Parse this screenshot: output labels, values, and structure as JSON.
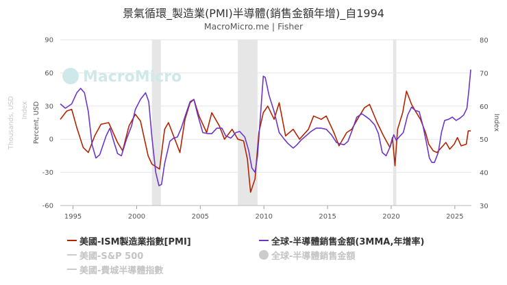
{
  "title": "景氣循環_製造業(PMI)半導體(銷售金額年增)_自1994",
  "subtitle": "MacroMicro.me | Fisher",
  "watermark": "MacroMicro",
  "colors": {
    "pmi": "#b22300",
    "semi": "#6a36c7",
    "inactive": "#cccccc",
    "grid": "#e6e6e6",
    "band": "#e6e6e6"
  },
  "legend": [
    {
      "label": "美國-ISM製造業指數[PMI]",
      "color": "#b22300",
      "marker": "line",
      "active": true
    },
    {
      "label": "全球-半導體銷售金額(3MMA,年增率)",
      "color": "#6a36c7",
      "marker": "line",
      "active": true
    },
    {
      "label": "美國-S&P 500",
      "color": "#cccccc",
      "marker": "line",
      "active": false
    },
    {
      "label": "全球-半導體銷售金額",
      "color": "#cccccc",
      "marker": "dot",
      "active": false
    },
    {
      "label": "美國-費城半導體指數",
      "color": "#cccccc",
      "marker": "line",
      "active": false
    }
  ],
  "chart_data": {
    "type": "line",
    "title": "景氣循環_製造業(PMI)半導體(銷售金額年增)_自1994",
    "x_range": [
      1994.0,
      2026.3
    ],
    "x_ticks": [
      1995,
      2000,
      2005,
      2010,
      2015,
      2020,
      2025
    ],
    "left_axis": {
      "title": "Percent, USD",
      "range": [
        -60,
        90
      ],
      "ticks": [
        -60,
        -30,
        0,
        30,
        60,
        90
      ]
    },
    "left_faint_axis": {
      "title": "Thousands, USD",
      "subtitle": "Index"
    },
    "right_axis": {
      "title": "Index",
      "range": [
        30,
        80
      ],
      "ticks": [
        30,
        40,
        50,
        60,
        70,
        80
      ]
    },
    "recessions": [
      [
        2001.2,
        2001.9
      ],
      [
        2007.95,
        2009.5
      ],
      [
        2020.15,
        2020.4
      ]
    ],
    "series": [
      {
        "name": "美國-ISM製造業指數[PMI]",
        "axis": "right",
        "color": "#b22300",
        "points": [
          [
            1994.0,
            56.0
          ],
          [
            1994.5,
            58.5
          ],
          [
            1994.9,
            59.0
          ],
          [
            1995.3,
            53.5
          ],
          [
            1995.8,
            47.5
          ],
          [
            1996.2,
            46.0
          ],
          [
            1996.7,
            51.0
          ],
          [
            1997.2,
            54.5
          ],
          [
            1997.8,
            55.0
          ],
          [
            1998.5,
            49.0
          ],
          [
            1998.9,
            46.5
          ],
          [
            1999.4,
            54.0
          ],
          [
            1999.9,
            57.5
          ],
          [
            2000.3,
            55.5
          ],
          [
            2000.9,
            45.0
          ],
          [
            2001.2,
            42.5
          ],
          [
            2001.8,
            41.0
          ],
          [
            2002.2,
            53.0
          ],
          [
            2002.5,
            55.0
          ],
          [
            2003.0,
            50.0
          ],
          [
            2003.4,
            46.0
          ],
          [
            2003.8,
            56.0
          ],
          [
            2004.2,
            61.0
          ],
          [
            2004.5,
            62.0
          ],
          [
            2004.9,
            57.0
          ],
          [
            2005.5,
            52.0
          ],
          [
            2005.9,
            58.0
          ],
          [
            2006.5,
            54.0
          ],
          [
            2006.9,
            50.0
          ],
          [
            2007.5,
            53.0
          ],
          [
            2007.95,
            50.0
          ],
          [
            2008.4,
            49.5
          ],
          [
            2008.7,
            44.0
          ],
          [
            2008.95,
            34.0
          ],
          [
            2009.3,
            38.0
          ],
          [
            2009.6,
            52.0
          ],
          [
            2009.95,
            58.0
          ],
          [
            2010.3,
            60.0
          ],
          [
            2010.8,
            56.0
          ],
          [
            2011.2,
            61.0
          ],
          [
            2011.7,
            51.0
          ],
          [
            2012.3,
            53.0
          ],
          [
            2012.8,
            50.0
          ],
          [
            2013.5,
            53.0
          ],
          [
            2013.9,
            57.0
          ],
          [
            2014.5,
            56.0
          ],
          [
            2014.9,
            57.0
          ],
          [
            2015.5,
            52.0
          ],
          [
            2015.9,
            48.0
          ],
          [
            2016.5,
            52.0
          ],
          [
            2016.9,
            53.0
          ],
          [
            2017.5,
            57.0
          ],
          [
            2017.9,
            59.5
          ],
          [
            2018.3,
            60.5
          ],
          [
            2018.9,
            55.0
          ],
          [
            2019.4,
            51.0
          ],
          [
            2019.9,
            47.5
          ],
          [
            2020.1,
            50.5
          ],
          [
            2020.3,
            42.0
          ],
          [
            2020.5,
            53.0
          ],
          [
            2020.9,
            58.0
          ],
          [
            2021.2,
            64.5
          ],
          [
            2021.6,
            60.5
          ],
          [
            2021.9,
            58.5
          ],
          [
            2022.3,
            56.0
          ],
          [
            2022.7,
            52.0
          ],
          [
            2022.95,
            48.5
          ],
          [
            2023.3,
            46.5
          ],
          [
            2023.6,
            46.0
          ],
          [
            2023.95,
            47.5
          ],
          [
            2024.3,
            49.0
          ],
          [
            2024.6,
            47.0
          ],
          [
            2024.95,
            48.5
          ],
          [
            2025.2,
            50.5
          ],
          [
            2025.5,
            48.0
          ],
          [
            2025.9,
            48.5
          ],
          [
            2026.05,
            52.5
          ],
          [
            2026.25,
            52.5
          ]
        ]
      },
      {
        "name": "全球-半導體銷售金額(3MMA,年增率)",
        "axis": "left",
        "color": "#6a36c7",
        "points": [
          [
            1994.0,
            32.0
          ],
          [
            1994.4,
            28.0
          ],
          [
            1994.9,
            32.0
          ],
          [
            1995.3,
            42.0
          ],
          [
            1995.6,
            46.0
          ],
          [
            1995.9,
            42.0
          ],
          [
            1996.2,
            25.0
          ],
          [
            1996.5,
            -5.0
          ],
          [
            1996.8,
            -17.0
          ],
          [
            1997.1,
            -14.0
          ],
          [
            1997.6,
            3.0
          ],
          [
            1997.9,
            10.0
          ],
          [
            1998.2,
            -2.0
          ],
          [
            1998.5,
            -13.0
          ],
          [
            1998.8,
            -15.0
          ],
          [
            1999.2,
            0.0
          ],
          [
            1999.6,
            12.0
          ],
          [
            1999.9,
            27.0
          ],
          [
            2000.3,
            36.0
          ],
          [
            2000.7,
            42.0
          ],
          [
            2000.95,
            34.0
          ],
          [
            2001.2,
            2.0
          ],
          [
            2001.5,
            -30.0
          ],
          [
            2001.75,
            -42.0
          ],
          [
            2001.95,
            -41.0
          ],
          [
            2002.2,
            -22.0
          ],
          [
            2002.6,
            -2.0
          ],
          [
            2002.9,
            1.0
          ],
          [
            2003.2,
            2.0
          ],
          [
            2003.5,
            10.0
          ],
          [
            2003.9,
            24.0
          ],
          [
            2004.2,
            34.0
          ],
          [
            2004.5,
            36.0
          ],
          [
            2004.8,
            22.0
          ],
          [
            2005.2,
            6.0
          ],
          [
            2005.6,
            5.0
          ],
          [
            2005.9,
            5.0
          ],
          [
            2006.3,
            10.0
          ],
          [
            2006.7,
            10.0
          ],
          [
            2007.0,
            3.0
          ],
          [
            2007.4,
            1.0
          ],
          [
            2007.8,
            6.0
          ],
          [
            2008.1,
            7.0
          ],
          [
            2008.5,
            2.0
          ],
          [
            2008.8,
            -10.0
          ],
          [
            2009.05,
            -26.0
          ],
          [
            2009.3,
            -30.0
          ],
          [
            2009.5,
            -15.0
          ],
          [
            2009.75,
            25.0
          ],
          [
            2009.95,
            57.0
          ],
          [
            2010.1,
            56.0
          ],
          [
            2010.4,
            40.0
          ],
          [
            2010.8,
            25.0
          ],
          [
            2011.2,
            6.0
          ],
          [
            2011.6,
            0.0
          ],
          [
            2011.9,
            -4.0
          ],
          [
            2012.3,
            -8.0
          ],
          [
            2012.6,
            -5.0
          ],
          [
            2012.9,
            -1.0
          ],
          [
            2013.3,
            3.0
          ],
          [
            2013.7,
            7.0
          ],
          [
            2014.1,
            10.0
          ],
          [
            2014.5,
            10.0
          ],
          [
            2014.9,
            9.0
          ],
          [
            2015.3,
            4.0
          ],
          [
            2015.7,
            -3.0
          ],
          [
            2015.95,
            -4.0
          ],
          [
            2016.3,
            -5.0
          ],
          [
            2016.6,
            -2.0
          ],
          [
            2016.9,
            7.0
          ],
          [
            2017.3,
            20.0
          ],
          [
            2017.7,
            23.0
          ],
          [
            2017.95,
            21.0
          ],
          [
            2018.3,
            18.0
          ],
          [
            2018.7,
            13.0
          ],
          [
            2019.0,
            5.0
          ],
          [
            2019.3,
            -12.0
          ],
          [
            2019.6,
            -15.0
          ],
          [
            2019.95,
            -6.0
          ],
          [
            2020.2,
            4.0
          ],
          [
            2020.4,
            -1.0
          ],
          [
            2020.7,
            3.0
          ],
          [
            2020.95,
            6.0
          ],
          [
            2021.3,
            22.0
          ],
          [
            2021.6,
            29.0
          ],
          [
            2021.9,
            26.0
          ],
          [
            2022.2,
            25.0
          ],
          [
            2022.5,
            12.0
          ],
          [
            2022.8,
            -5.0
          ],
          [
            2023.0,
            -17.0
          ],
          [
            2023.2,
            -21.0
          ],
          [
            2023.4,
            -21.0
          ],
          [
            2023.7,
            -12.0
          ],
          [
            2023.95,
            6.0
          ],
          [
            2024.2,
            17.0
          ],
          [
            2024.5,
            18.0
          ],
          [
            2024.8,
            20.0
          ],
          [
            2025.1,
            17.0
          ],
          [
            2025.4,
            19.0
          ],
          [
            2025.7,
            22.0
          ],
          [
            2025.95,
            28.0
          ],
          [
            2026.1,
            44.0
          ],
          [
            2026.25,
            63.0
          ]
        ]
      }
    ]
  }
}
